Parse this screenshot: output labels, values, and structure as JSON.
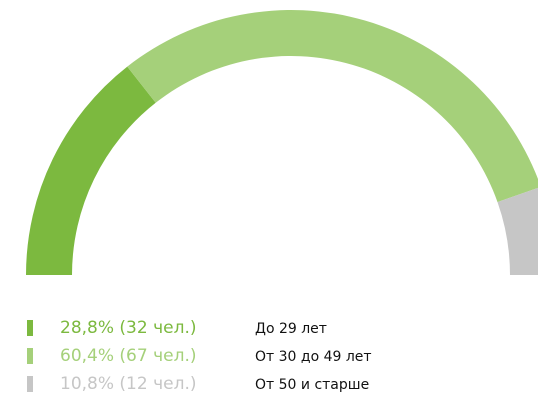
{
  "chart_data": {
    "type": "semidonut",
    "categories": [
      "До 29 лет",
      "От 30 до 49 лет",
      "От 50 и старше"
    ],
    "values": [
      28.8,
      60.4,
      10.8
    ],
    "value_labels": [
      "28,8% (32 чел.)",
      "60,4% (67 чел.)",
      "10,8% (12 чел.)"
    ],
    "colors": [
      "#7cb93f",
      "#a5d07a",
      "#c6c6c6"
    ]
  }
}
